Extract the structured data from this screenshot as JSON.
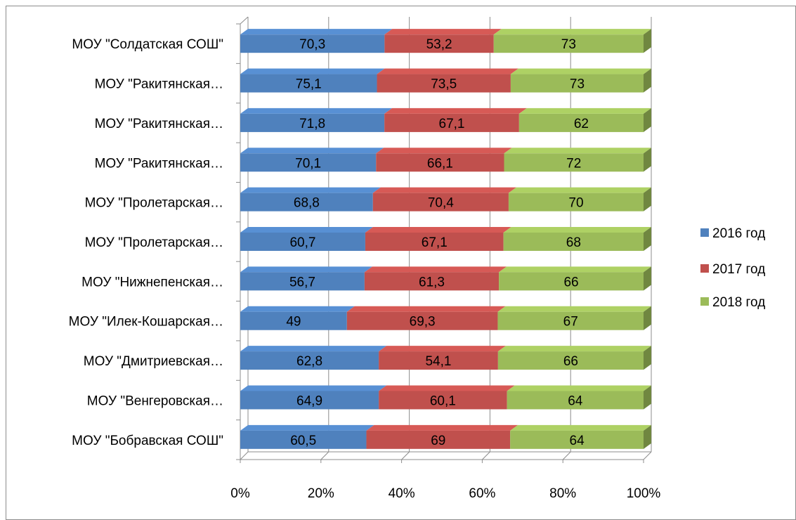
{
  "chart_data": {
    "type": "bar",
    "orientation": "horizontal",
    "stacking": "percent",
    "three_d": true,
    "title": "",
    "xlabel": "",
    "ylabel": "",
    "xlim": [
      0,
      100
    ],
    "x_ticks": [
      "0%",
      "20%",
      "40%",
      "60%",
      "80%",
      "100%"
    ],
    "grid": true,
    "legend_position": "right",
    "categories": [
      "МОУ \"Бобравская СОШ\"",
      "МОУ \"Венгеровская…",
      "МОУ \"Дмитриевская…",
      "МОУ \"Илек-Кошарская…",
      "МОУ \"Нижнепенская…",
      "МОУ \"Пролетарская…",
      "МОУ \"Пролетарская…",
      "МОУ \"Ракитянская…",
      "МОУ \"Ракитянская…",
      "МОУ \"Ракитянская…",
      "МОУ \"Солдатская СОШ\""
    ],
    "series": [
      {
        "name": "2016 год",
        "color": "#4f81bd",
        "values": [
          60.5,
          64.9,
          62.8,
          49,
          56.7,
          60.7,
          68.8,
          70.1,
          71.8,
          75.1,
          70.3
        ],
        "labels": [
          "60,5",
          "64,9",
          "62,8",
          "49",
          "56,7",
          "60,7",
          "68,8",
          "70,1",
          "71,8",
          "75,1",
          "70,3"
        ]
      },
      {
        "name": "2017 год",
        "color": "#c0504d",
        "values": [
          69,
          60.1,
          54.1,
          69.3,
          61.3,
          67.1,
          70.4,
          66.1,
          67.1,
          73.5,
          53.2
        ],
        "labels": [
          "69",
          "60,1",
          "54,1",
          "69,3",
          "61,3",
          "67,1",
          "70,4",
          "66,1",
          "67,1",
          "73,5",
          "53,2"
        ]
      },
      {
        "name": "2018 год",
        "color": "#9bbb59",
        "values": [
          64,
          64,
          66,
          67,
          66,
          68,
          70,
          72,
          62,
          73,
          73
        ],
        "labels": [
          "64",
          "64",
          "66",
          "67",
          "66",
          "68",
          "70",
          "72",
          "62",
          "73",
          "73"
        ]
      }
    ]
  }
}
